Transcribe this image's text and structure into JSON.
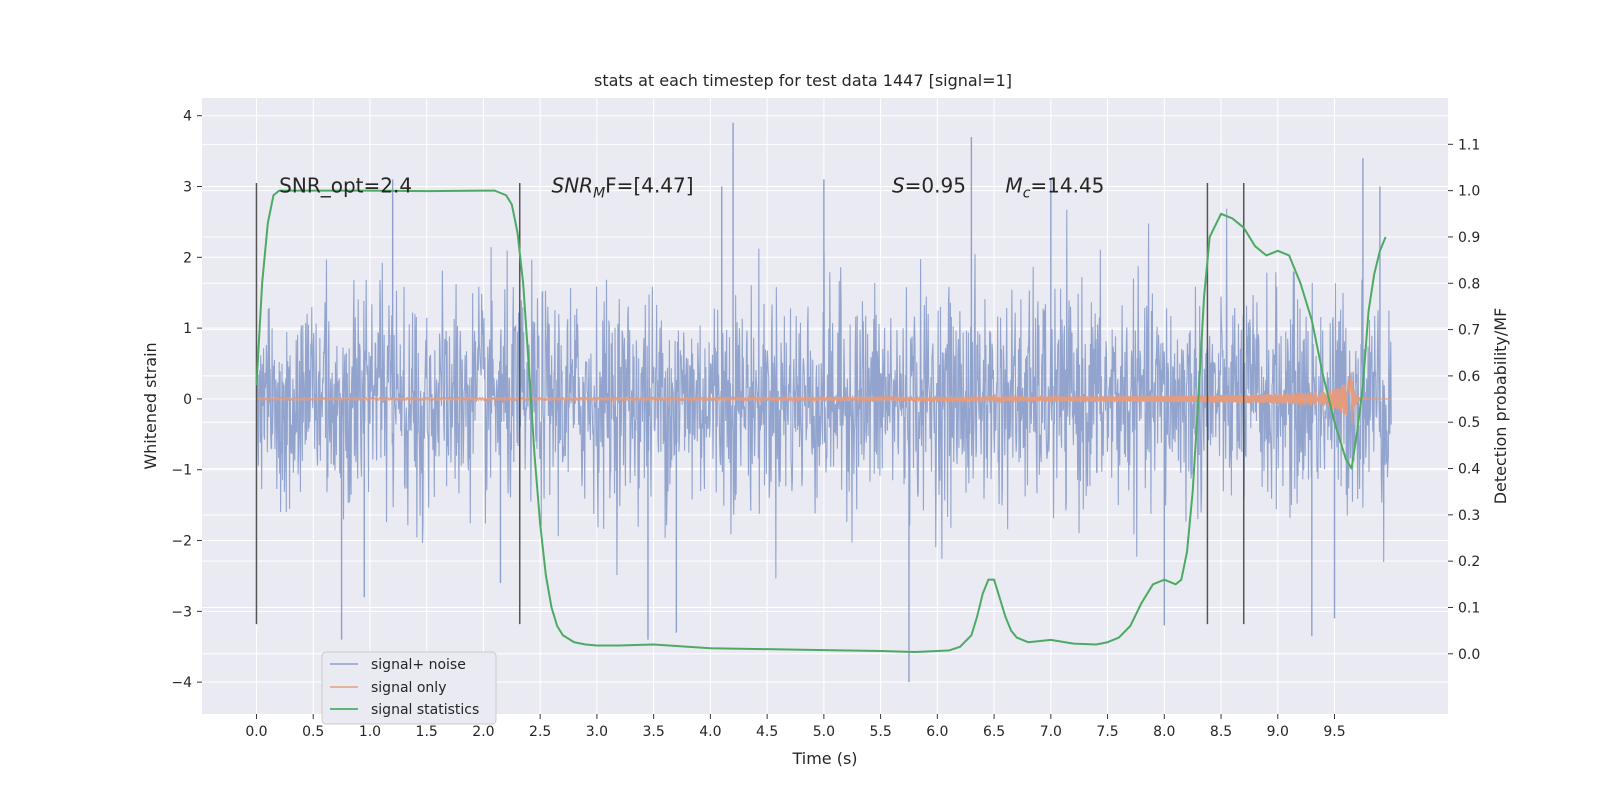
{
  "chart_data": {
    "type": "line",
    "title": "stats at each timestep for test data 1447 [signal=1]",
    "xlabel": "Time (s)",
    "ylabel": "Whitened strain",
    "y2label": "Detection probability/MF",
    "xlim": [
      -0.48,
      10.5
    ],
    "ylim": [
      -4.45,
      4.25
    ],
    "y2lim": [
      -0.13,
      1.2
    ],
    "xticks": [
      "0.0",
      "0.5",
      "1.0",
      "1.5",
      "2.0",
      "2.5",
      "3.0",
      "3.5",
      "4.0",
      "4.5",
      "5.0",
      "5.5",
      "6.0",
      "6.5",
      "7.0",
      "7.5",
      "8.0",
      "8.5",
      "9.0",
      "9.5"
    ],
    "yticks": [
      "4",
      "3",
      "2",
      "1",
      "0",
      "−1",
      "−2",
      "−3",
      "−4"
    ],
    "y2ticks": [
      "1.1",
      "1.0",
      "0.9",
      "0.8",
      "0.7",
      "0.6",
      "0.5",
      "0.4",
      "0.3",
      "0.2",
      "0.1",
      "0.0"
    ],
    "grid": true,
    "legend_position": "lower-left",
    "colors": {
      "noise": "#8da0cb",
      "signal": "#e39c80",
      "stats": "#4daa63",
      "vlines": "#555555",
      "axes_bg": "#eaeaf2",
      "grid": "#ffffff"
    },
    "annotations": [
      {
        "text": "SNR_opt=2.4",
        "x": 0.2,
        "y": 3.0
      },
      {
        "text": "SNR",
        "sub": "M",
        "text2": "F=[4.47]",
        "x": 2.6,
        "y": 3.0
      },
      {
        "text": "S",
        "text2": "=0.95",
        "x": 5.6,
        "y": 3.0
      },
      {
        "text": "M",
        "sub": "c",
        "text2": "=14.45",
        "x": 6.6,
        "y": 3.0
      }
    ],
    "vertical_lines_x": [
      0.0,
      2.32,
      8.38,
      8.7
    ],
    "vertical_lines_yrange": [
      -3.18,
      3.05
    ],
    "series": [
      {
        "name": "signal+ noise",
        "kind": "noise",
        "duration": 10.0,
        "envelope_sigma": 0.75,
        "prominent_spikes": [
          {
            "x": 0.75,
            "y": -3.4
          },
          {
            "x": 0.95,
            "y": -2.8
          },
          {
            "x": 1.2,
            "y": 3.1
          },
          {
            "x": 2.15,
            "y": -2.6
          },
          {
            "x": 3.45,
            "y": -3.4
          },
          {
            "x": 3.7,
            "y": -3.3
          },
          {
            "x": 4.2,
            "y": 3.9
          },
          {
            "x": 4.1,
            "y": 3.0
          },
          {
            "x": 5.0,
            "y": 3.1
          },
          {
            "x": 5.75,
            "y": -4.0
          },
          {
            "x": 6.3,
            "y": 3.7
          },
          {
            "x": 7.0,
            "y": 3.1
          },
          {
            "x": 8.0,
            "y": -3.2
          },
          {
            "x": 9.3,
            "y": -3.35
          },
          {
            "x": 9.5,
            "y": -3.1
          },
          {
            "x": 9.75,
            "y": 3.4
          },
          {
            "x": 9.9,
            "y": 3.0
          }
        ]
      },
      {
        "name": "signal only",
        "kind": "chirp",
        "duration": 10.0,
        "peak_time": 9.65,
        "peak_amplitude": 0.4
      },
      {
        "name": "signal statistics",
        "kind": "line",
        "axis": "right",
        "x": [
          0.0,
          0.05,
          0.1,
          0.15,
          0.2,
          0.3,
          0.5,
          1.0,
          1.5,
          2.0,
          2.1,
          2.2,
          2.25,
          2.3,
          2.35,
          2.4,
          2.45,
          2.5,
          2.55,
          2.6,
          2.65,
          2.7,
          2.8,
          2.9,
          3.0,
          3.2,
          3.5,
          4.0,
          4.5,
          5.0,
          5.5,
          5.8,
          6.1,
          6.2,
          6.3,
          6.35,
          6.4,
          6.45,
          6.5,
          6.55,
          6.6,
          6.65,
          6.7,
          6.8,
          7.0,
          7.2,
          7.4,
          7.5,
          7.6,
          7.7,
          7.8,
          7.9,
          8.0,
          8.1,
          8.15,
          8.2,
          8.25,
          8.3,
          8.35,
          8.4,
          8.5,
          8.6,
          8.7,
          8.8,
          8.9,
          9.0,
          9.1,
          9.2,
          9.3,
          9.4,
          9.5,
          9.6,
          9.65,
          9.7,
          9.75,
          9.8,
          9.85,
          9.9,
          9.95
        ],
        "y": [
          0.58,
          0.8,
          0.93,
          0.99,
          1.0,
          1.0,
          1.0,
          1.0,
          0.999,
          1.0,
          1.0,
          0.99,
          0.97,
          0.91,
          0.8,
          0.62,
          0.43,
          0.28,
          0.17,
          0.1,
          0.06,
          0.04,
          0.025,
          0.02,
          0.018,
          0.018,
          0.02,
          0.012,
          0.01,
          0.008,
          0.006,
          0.004,
          0.007,
          0.015,
          0.04,
          0.08,
          0.13,
          0.16,
          0.16,
          0.12,
          0.08,
          0.05,
          0.035,
          0.025,
          0.03,
          0.022,
          0.02,
          0.025,
          0.035,
          0.06,
          0.11,
          0.15,
          0.16,
          0.15,
          0.16,
          0.22,
          0.35,
          0.55,
          0.77,
          0.9,
          0.95,
          0.94,
          0.92,
          0.88,
          0.86,
          0.87,
          0.86,
          0.8,
          0.72,
          0.6,
          0.5,
          0.42,
          0.4,
          0.48,
          0.58,
          0.74,
          0.82,
          0.87,
          0.9
        ]
      }
    ]
  }
}
